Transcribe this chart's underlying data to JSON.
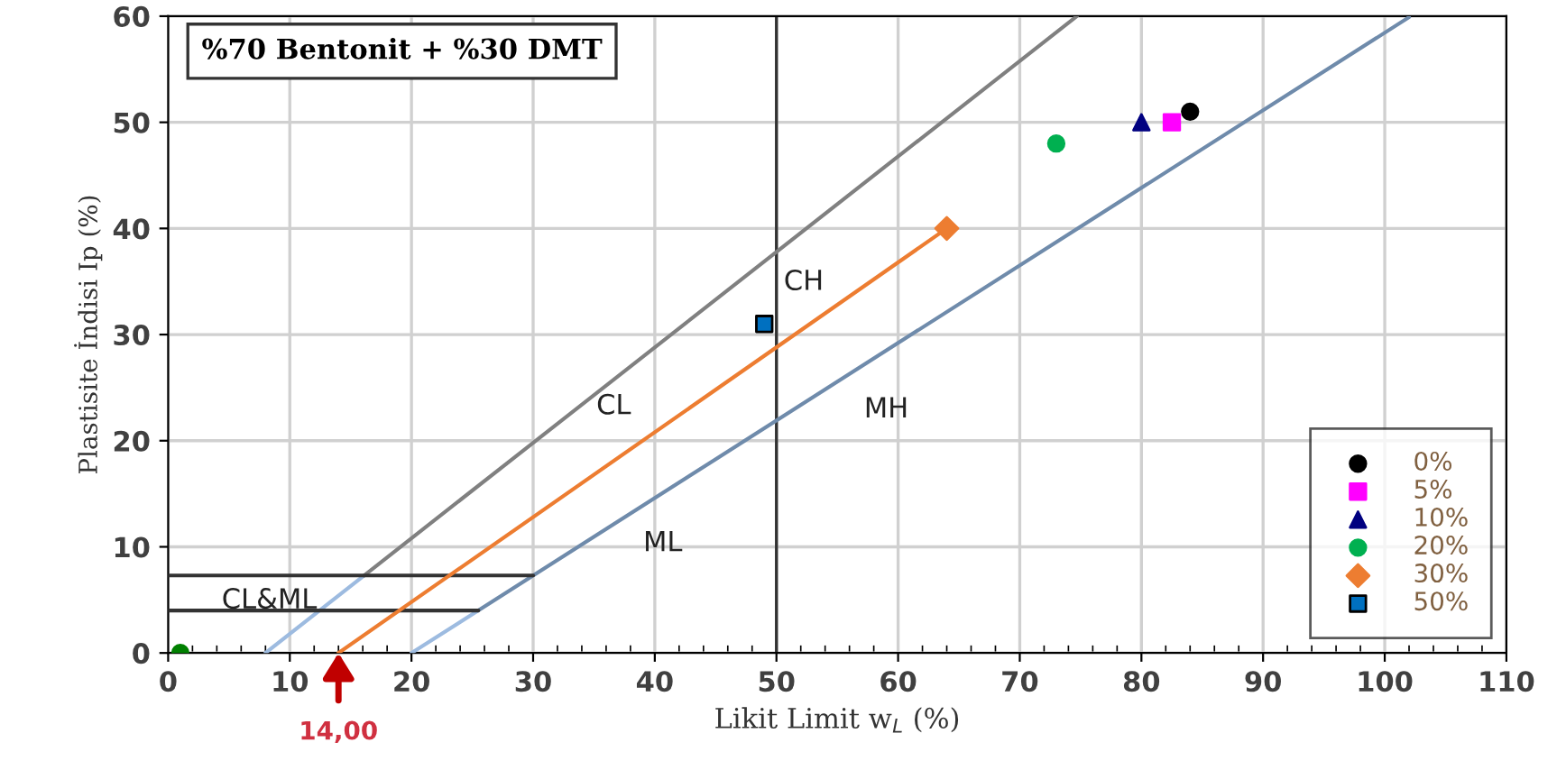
{
  "chart_data": {
    "type": "scatter",
    "title": "%70 Bentonit + %30 DMT",
    "xlabel": "Likit Limit w$_{L}$ (%)",
    "ylabel": "Plastisite İndisi Ip (%)",
    "xlim": [
      0,
      110
    ],
    "xticks": [
      0,
      10,
      20,
      30,
      40,
      50,
      60,
      70,
      80,
      90,
      100,
      110
    ],
    "ylim": [
      0,
      60
    ],
    "yticks": [
      0,
      10,
      20,
      30,
      40,
      50,
      60
    ],
    "grid": true,
    "legend": "bottom right",
    "series": [
      {
        "type": "line",
        "color": "#9dbbe0",
        "x": [
          8,
          16.1
        ],
        "values": [
          0,
          7.3
        ]
      },
      {
        "type": "line",
        "color": "#808080",
        "x": [
          16.1,
          74.7
        ],
        "values": [
          7.3,
          60
        ]
      },
      {
        "type": "line",
        "color": "#9dbbe0",
        "x": [
          20,
          25.5
        ],
        "values": [
          0,
          4
        ]
      },
      {
        "type": "line",
        "color": "#6f8bab",
        "x": [
          25.5,
          102
        ],
        "values": [
          4,
          59.9
        ]
      },
      {
        "type": "line",
        "color": "#333333",
        "x": [
          0,
          30
        ],
        "values": [
          7.3,
          7.3
        ]
      },
      {
        "type": "line",
        "color": "#333333",
        "x": [
          0,
          25.5
        ],
        "values": [
          4,
          4
        ]
      },
      {
        "type": "line",
        "color": "#ed7d31",
        "x": [
          14,
          64
        ],
        "values": [
          0,
          40
        ]
      },
      {
        "color": "#008000",
        "marker": "circle",
        "x": [
          1
        ],
        "values": [
          0
        ]
      },
      {
        "name": "0%",
        "color": "#000000",
        "marker": "circle",
        "x": [
          84
        ],
        "values": [
          51
        ]
      },
      {
        "name": "5%",
        "color": "#ff00ff",
        "marker": "square",
        "x": [
          82.5
        ],
        "values": [
          50
        ]
      },
      {
        "name": "10%",
        "color": "#000080",
        "marker": "triangle",
        "x": [
          80
        ],
        "values": [
          50
        ]
      },
      {
        "name": "20%",
        "color": "#00b050",
        "marker": "circle",
        "x": [
          73
        ],
        "values": [
          48
        ]
      },
      {
        "name": "30%",
        "color": "#ed7d31",
        "marker": "diamond",
        "x": [
          64
        ],
        "values": [
          40
        ]
      },
      {
        "name": "50%",
        "color": "#0070c0",
        "marker": "square",
        "x": [
          49
        ],
        "values": [
          31
        ]
      }
    ],
    "ref_lines": [
      {
        "axis": "x",
        "value": 50,
        "color": "#333333"
      }
    ],
    "annotations": [
      "CH",
      "CL",
      "MH",
      "ML",
      "CL&ML",
      {
        "text": "14,00",
        "x": 14,
        "y": 0
      }
    ]
  }
}
